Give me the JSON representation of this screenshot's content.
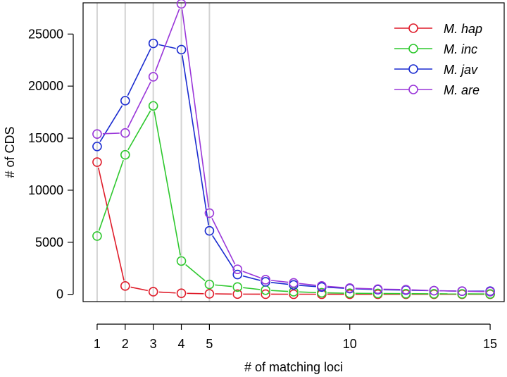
{
  "chart_data": {
    "type": "line",
    "xlabel": "# of matching loci",
    "ylabel": "# of CDS",
    "xlim": [
      0.5,
      15.5
    ],
    "ylim": [
      -700,
      28000
    ],
    "x_ticks": [
      1,
      2,
      3,
      4,
      5,
      10,
      15
    ],
    "y_ticks": [
      0,
      5000,
      10000,
      15000,
      20000,
      25000
    ],
    "vertical_gridlines_at": [
      1,
      2,
      3,
      4,
      5
    ],
    "gridline_color": "#d3d3d3",
    "legend_position": "top-right",
    "marker": "open-circle",
    "x": [
      1,
      2,
      3,
      4,
      5,
      6,
      7,
      8,
      9,
      10,
      11,
      12,
      13,
      14,
      15
    ],
    "series": [
      {
        "name": "M. hap",
        "color": "#df1c2a",
        "values": [
          12700,
          800,
          250,
          100,
          50,
          20,
          15,
          10,
          10,
          5,
          5,
          5,
          5,
          5,
          5
        ]
      },
      {
        "name": "M. inc",
        "color": "#2ec82e",
        "values": [
          5600,
          13400,
          18100,
          3200,
          950,
          700,
          400,
          250,
          150,
          100,
          80,
          60,
          50,
          40,
          30
        ]
      },
      {
        "name": "M. jav",
        "color": "#1a2bd0",
        "values": [
          14200,
          18600,
          24100,
          23500,
          6100,
          1900,
          1200,
          900,
          700,
          550,
          450,
          400,
          350,
          300,
          300
        ]
      },
      {
        "name": "M. are",
        "color": "#9a36d9",
        "values": [
          15400,
          15500,
          20900,
          27900,
          7800,
          2400,
          1400,
          1100,
          800,
          600,
          500,
          450,
          350,
          300,
          250
        ]
      }
    ]
  }
}
